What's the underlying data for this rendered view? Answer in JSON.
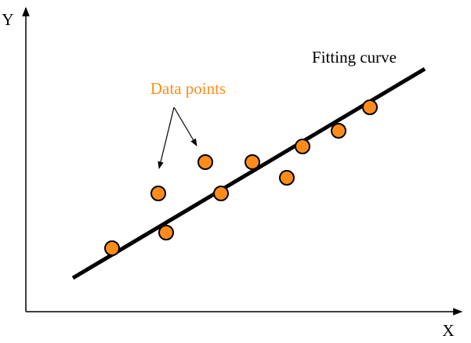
{
  "axes": {
    "y_label": "Y",
    "x_label": "X"
  },
  "labels": {
    "fitting_curve": "Fitting curve",
    "data_points": "Data points"
  }
}
